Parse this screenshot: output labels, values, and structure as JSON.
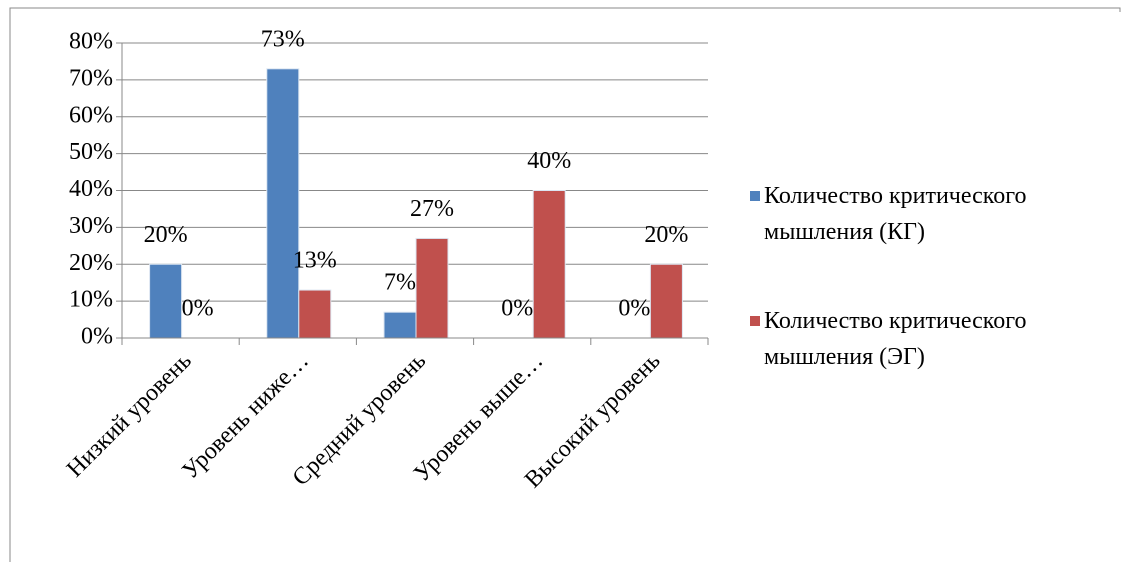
{
  "chart_data": {
    "type": "bar",
    "categories": [
      "Низкий уровень",
      "Уровень ниже…",
      "Средний уровень",
      "Уровень выше…",
      "Высокий уровень"
    ],
    "series": [
      {
        "name": "Количество критического мышления (КГ)",
        "color": "#4f81bd",
        "values": [
          20,
          73,
          7,
          0,
          0
        ],
        "value_labels": [
          "20%",
          "73%",
          "7%",
          "0%",
          "0%"
        ]
      },
      {
        "name": "Количество критического мышления (ЭГ)",
        "color": "#c0504d",
        "values": [
          0,
          13,
          27,
          40,
          20
        ],
        "value_labels": [
          "0%",
          "13%",
          "27%",
          "40%",
          "20%"
        ]
      }
    ],
    "ylim": [
      0,
      80
    ],
    "yticks": [
      {
        "value": 0,
        "label": "0%"
      },
      {
        "value": 10,
        "label": "10%"
      },
      {
        "value": 20,
        "label": "20%"
      },
      {
        "value": 30,
        "label": "30%"
      },
      {
        "value": 40,
        "label": "40%"
      },
      {
        "value": 50,
        "label": "50%"
      },
      {
        "value": 60,
        "label": "60%"
      },
      {
        "value": 70,
        "label": "70%"
      },
      {
        "value": 80,
        "label": "80%"
      }
    ],
    "grid": true,
    "legend": "right"
  }
}
